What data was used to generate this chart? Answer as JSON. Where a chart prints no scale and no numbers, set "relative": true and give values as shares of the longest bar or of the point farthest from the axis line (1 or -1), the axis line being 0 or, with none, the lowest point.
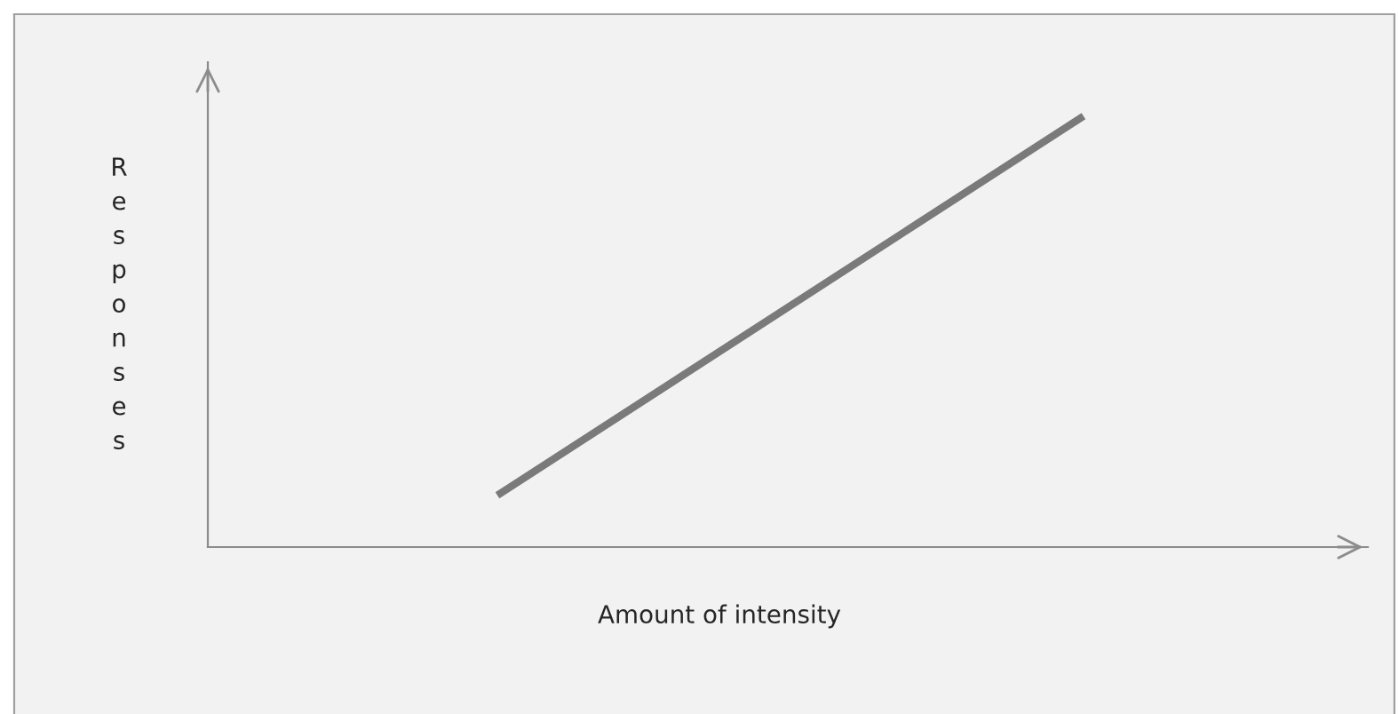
{
  "chart_data": {
    "type": "line",
    "relative": true,
    "xlabel": "Amount of intensity",
    "ylabel": "Responses",
    "categories": [
      null,
      null
    ],
    "series": [
      {
        "color": "#7a7a7a",
        "values": [
          0.12,
          1
        ]
      }
    ]
  }
}
